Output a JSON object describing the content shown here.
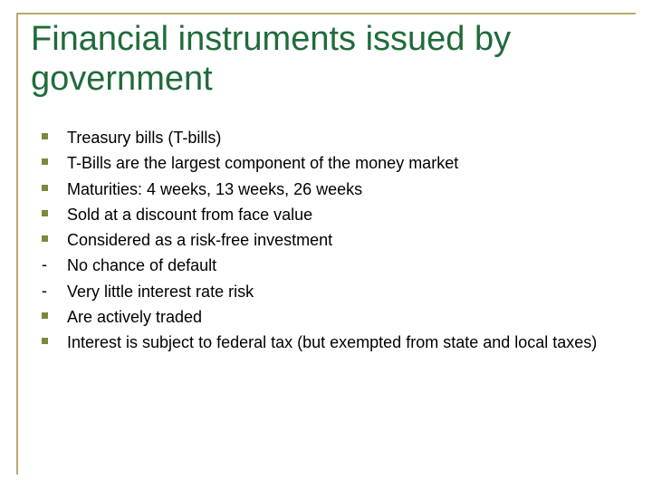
{
  "colors": {
    "rule": "#b7a96b",
    "title": "#1f6b3a",
    "bullet_square": "#7a8a3a",
    "bullet_dash": "#000000",
    "body_text": "#000000",
    "background": "#ffffff"
  },
  "title": "Financial instruments issued by government",
  "title_fontsize": 38,
  "body_fontsize": 18,
  "items": [
    {
      "marker": "square",
      "text": "Treasury bills (T-bills)"
    },
    {
      "marker": "square",
      "text": "T-Bills are the largest component of the money market"
    },
    {
      "marker": "square",
      "text": "Maturities: 4 weeks, 13 weeks, 26 weeks"
    },
    {
      "marker": "square",
      "text": "Sold at a discount from face value"
    },
    {
      "marker": "square",
      "text": "Considered as a risk-free investment"
    },
    {
      "marker": "dash",
      "text": "No chance of default"
    },
    {
      "marker": "dash",
      "text": "Very little interest rate risk"
    },
    {
      "marker": "square",
      "text": "Are actively traded"
    },
    {
      "marker": "square",
      "text": "Interest is subject to federal tax (but exempted from state and local taxes)"
    }
  ]
}
